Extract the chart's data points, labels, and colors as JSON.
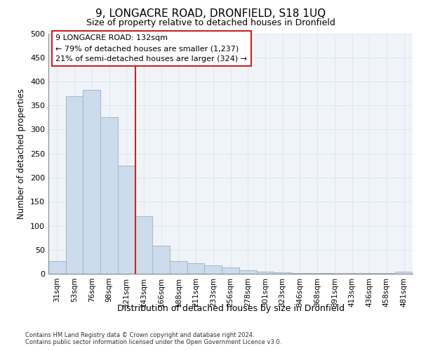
{
  "title1": "9, LONGACRE ROAD, DRONFIELD, S18 1UQ",
  "title2": "Size of property relative to detached houses in Dronfield",
  "xlabel": "Distribution of detached houses by size in Dronfield",
  "ylabel": "Number of detached properties",
  "categories": [
    "31sqm",
    "53sqm",
    "76sqm",
    "98sqm",
    "121sqm",
    "143sqm",
    "166sqm",
    "188sqm",
    "211sqm",
    "233sqm",
    "256sqm",
    "278sqm",
    "301sqm",
    "323sqm",
    "346sqm",
    "368sqm",
    "391sqm",
    "413sqm",
    "436sqm",
    "458sqm",
    "481sqm"
  ],
  "values": [
    27,
    370,
    383,
    325,
    225,
    120,
    58,
    27,
    22,
    17,
    13,
    7,
    4,
    3,
    2,
    1,
    1,
    1,
    1,
    1,
    4
  ],
  "bar_color": "#ccdcec",
  "bar_edge_color": "#aabbcc",
  "red_line_x": 5.0,
  "annotation_title": "9 LONGACRE ROAD: 132sqm",
  "annotation_line1": "← 79% of detached houses are smaller (1,237)",
  "annotation_line2": "21% of semi-detached houses are larger (324) →",
  "annotation_box_color": "#ffffff",
  "annotation_box_edge": "#cc2222",
  "red_line_color": "#cc2222",
  "ylim": [
    0,
    500
  ],
  "yticks": [
    0,
    50,
    100,
    150,
    200,
    250,
    300,
    350,
    400,
    450,
    500
  ],
  "footer1": "Contains HM Land Registry data © Crown copyright and database right 2024.",
  "footer2": "Contains public sector information licensed under the Open Government Licence v3.0.",
  "background_color": "#ffffff",
  "plot_bg_color": "#f0f4f8",
  "grid_color": "#dce8f0"
}
